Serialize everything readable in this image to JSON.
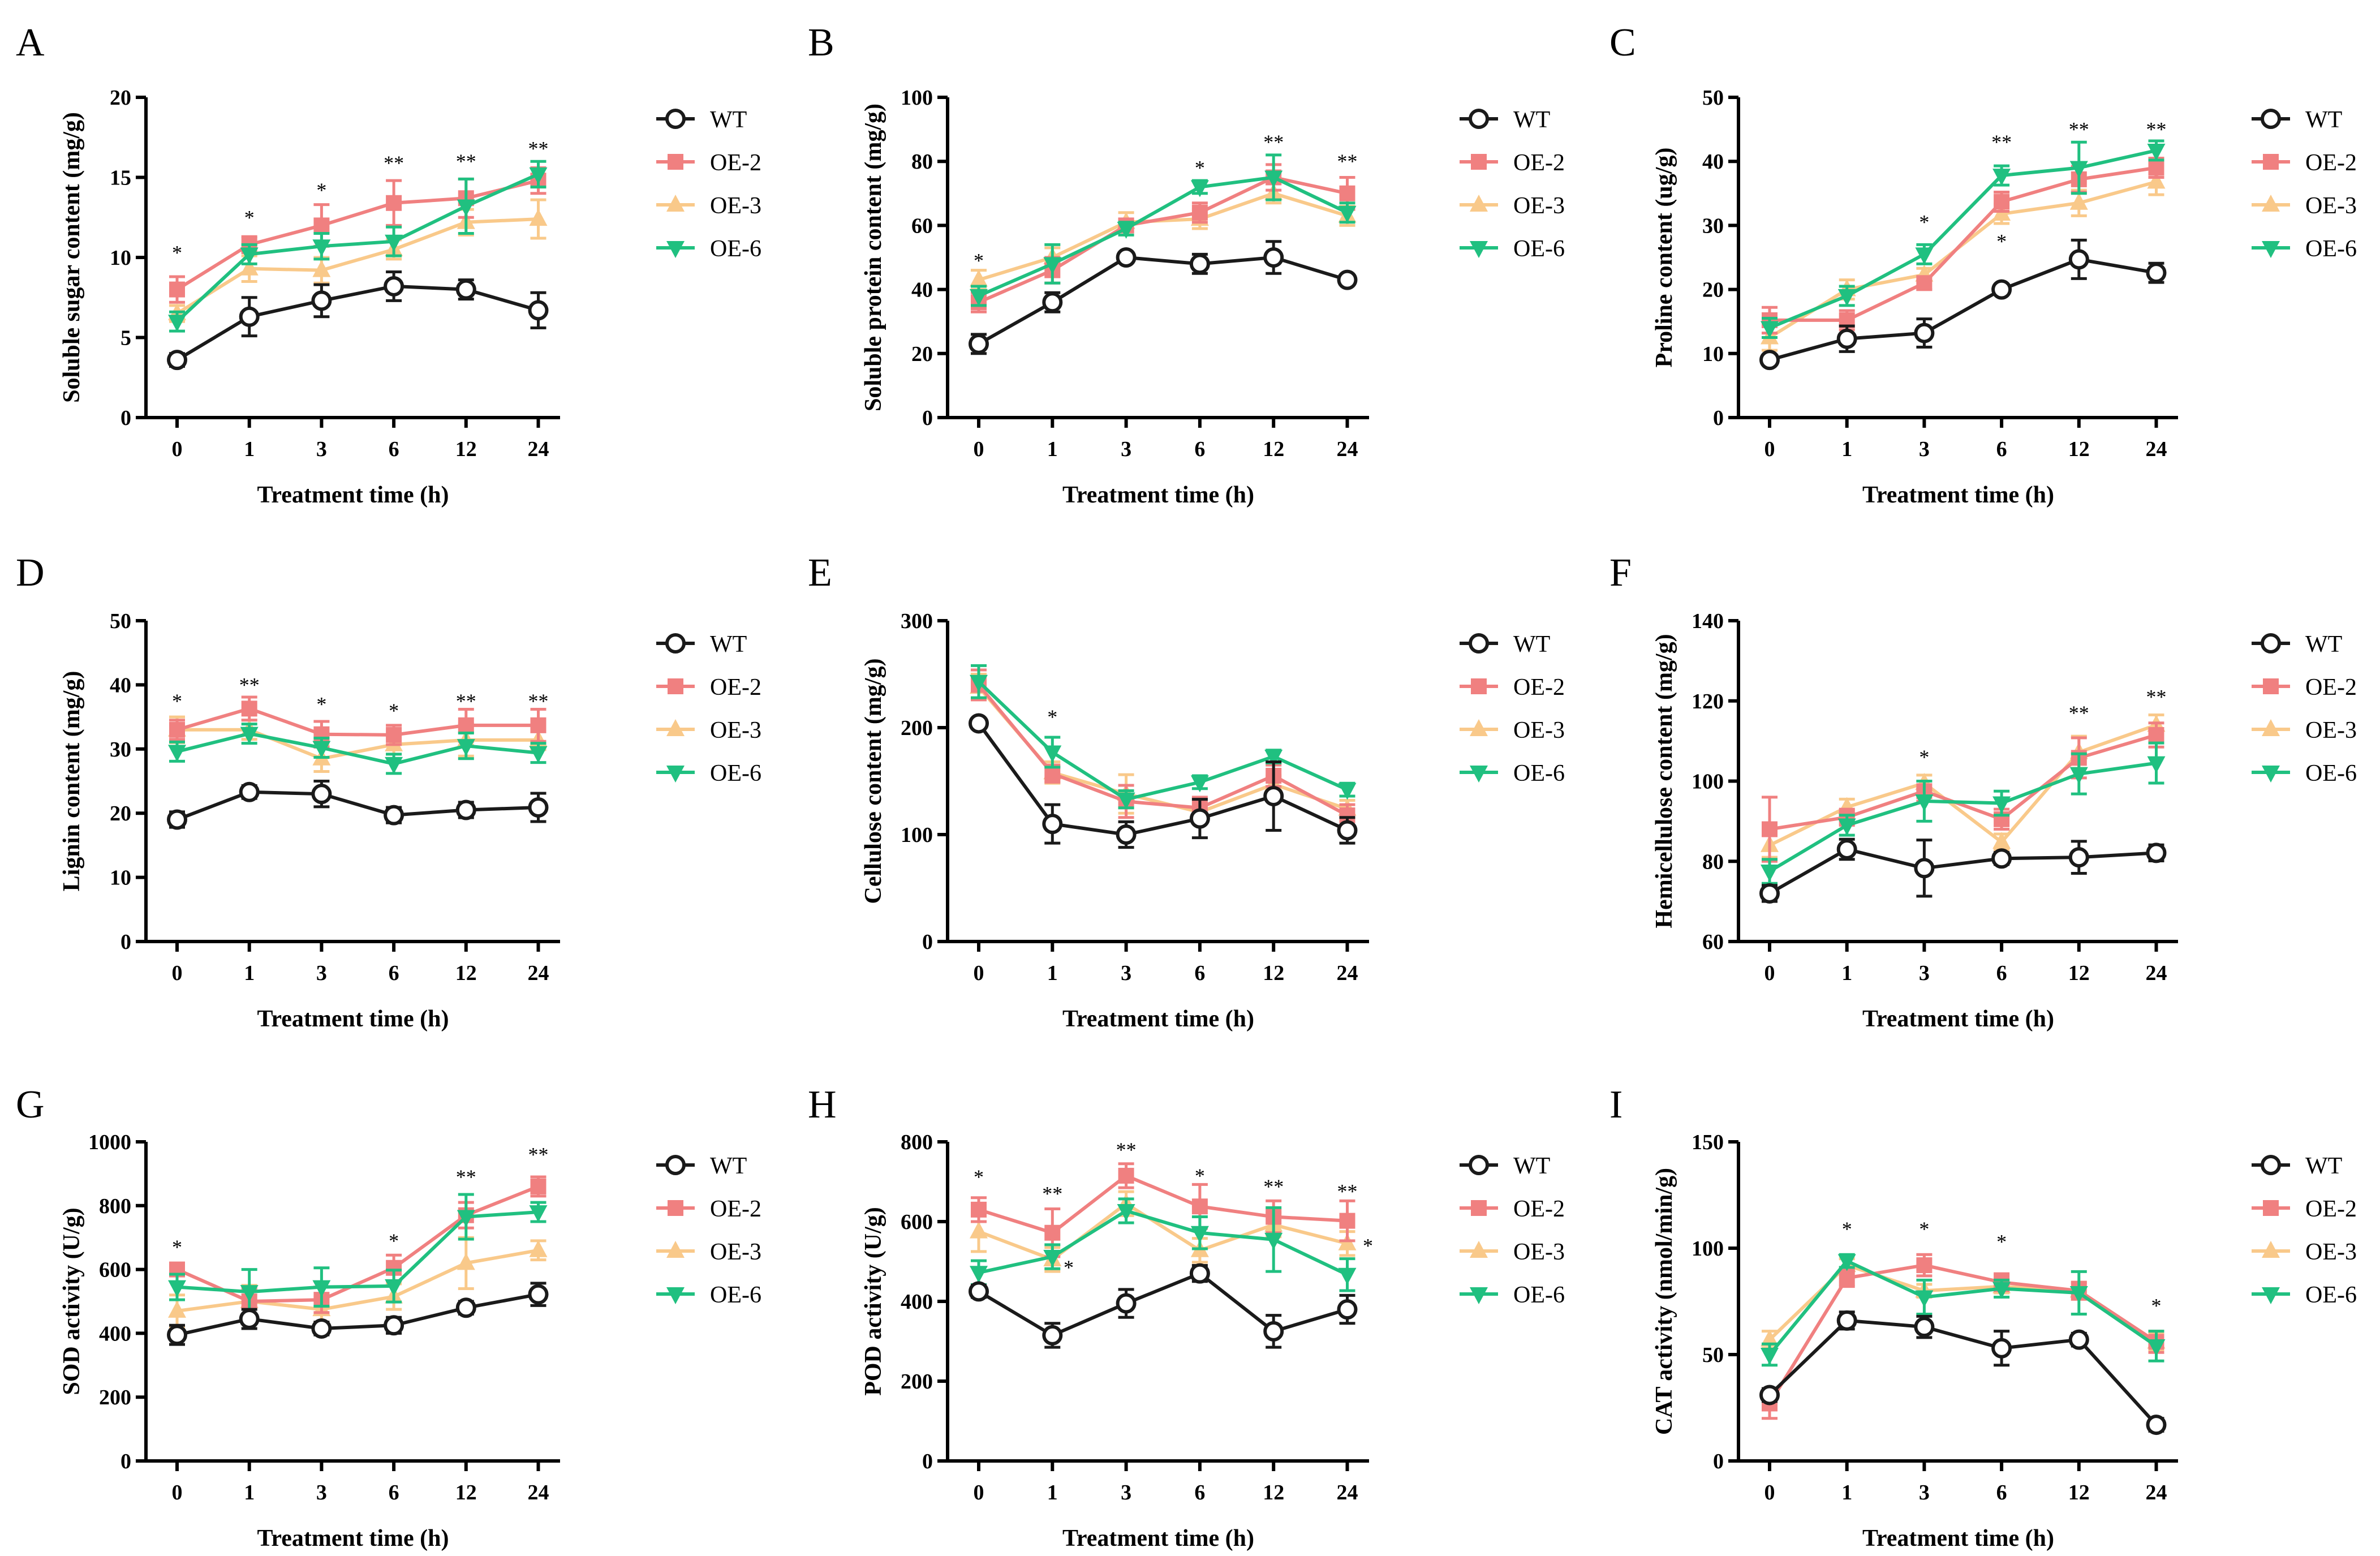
{
  "figure": {
    "panel_count": 9
  },
  "colors": {
    "WT": "#1a1a1a",
    "OE-2": "#f08080",
    "OE-3": "#f9c98a",
    "OE-6": "#20c080"
  },
  "chart_data": [
    {
      "panel": "A",
      "type": "line",
      "ylabel": "Soluble sugar content (mg/g)",
      "xlabel": "Treatment time (h)",
      "categories": [
        "0",
        "1",
        "3",
        "6",
        "12",
        "24"
      ],
      "ylim": [
        0,
        20
      ],
      "yticks": [
        0,
        5,
        10,
        15,
        20
      ],
      "series": [
        {
          "name": "WT",
          "values": [
            3.6,
            6.3,
            7.3,
            8.2,
            8.0,
            6.7
          ],
          "errors": [
            0.4,
            1.2,
            1.0,
            0.9,
            0.6,
            1.1
          ]
        },
        {
          "name": "OE-2",
          "values": [
            8.0,
            10.8,
            12.0,
            13.4,
            13.7,
            14.8
          ],
          "errors": [
            0.8,
            0.5,
            1.3,
            1.4,
            1.2,
            0.8
          ]
        },
        {
          "name": "OE-3",
          "values": [
            6.5,
            9.3,
            9.2,
            10.5,
            12.2,
            12.4
          ],
          "errors": [
            0.5,
            0.8,
            0.8,
            0.6,
            0.8,
            1.2
          ]
        },
        {
          "name": "OE-6",
          "values": [
            6.0,
            10.2,
            10.7,
            11.0,
            13.2,
            15.2
          ],
          "errors": [
            0.6,
            0.6,
            0.8,
            0.9,
            1.7,
            0.8
          ]
        }
      ],
      "annotations": [
        {
          "x": "0",
          "text": "*",
          "y": 10.3
        },
        {
          "x": "1",
          "text": "*",
          "y": 12.5
        },
        {
          "x": "3",
          "text": "*",
          "y": 14.2
        },
        {
          "x": "6",
          "text": "**",
          "y": 15.9
        },
        {
          "x": "12",
          "text": "**",
          "y": 16.0
        },
        {
          "x": "24",
          "text": "**",
          "y": 16.8
        }
      ]
    },
    {
      "panel": "B",
      "type": "line",
      "ylabel": "Soluble protein content (mg/g)",
      "xlabel": "Treatment time (h)",
      "categories": [
        "0",
        "1",
        "3",
        "6",
        "12",
        "24"
      ],
      "ylim": [
        0,
        100
      ],
      "yticks": [
        0,
        20,
        40,
        60,
        80,
        100
      ],
      "series": [
        {
          "name": "WT",
          "values": [
            23,
            36,
            50,
            48,
            50,
            43
          ],
          "errors": [
            3,
            3,
            1,
            3,
            5,
            1
          ]
        },
        {
          "name": "OE-2",
          "values": [
            36,
            46,
            60,
            64,
            75,
            70
          ],
          "errors": [
            3,
            4,
            2,
            3,
            4,
            5
          ]
        },
        {
          "name": "OE-3",
          "values": [
            43,
            50,
            61,
            62,
            70,
            63
          ],
          "errors": [
            3,
            3,
            3,
            3,
            3,
            3
          ]
        },
        {
          "name": "OE-6",
          "values": [
            38,
            48,
            59,
            72,
            75,
            64
          ],
          "errors": [
            3,
            6,
            2,
            2,
            7,
            3
          ]
        }
      ],
      "annotations": [
        {
          "x": "0",
          "text": "*",
          "y": 49
        },
        {
          "x": "6",
          "text": "*",
          "y": 78
        },
        {
          "x": "12",
          "text": "**",
          "y": 86
        },
        {
          "x": "24",
          "text": "**",
          "y": 80
        }
      ]
    },
    {
      "panel": "C",
      "type": "line",
      "ylabel": "Proline content (ug/g)",
      "xlabel": "Treatment time (h)",
      "categories": [
        "0",
        "1",
        "3",
        "6",
        "12",
        "24"
      ],
      "ylim": [
        0,
        50
      ],
      "yticks": [
        0,
        10,
        20,
        30,
        40,
        50
      ],
      "series": [
        {
          "name": "WT",
          "values": [
            9.0,
            12.3,
            13.2,
            20.0,
            24.7,
            22.6
          ],
          "errors": [
            0.5,
            2.0,
            2.2,
            0.5,
            3.0,
            1.5
          ]
        },
        {
          "name": "OE-2",
          "values": [
            15.2,
            15.2,
            21.0,
            33.7,
            37.2,
            39.0
          ],
          "errors": [
            2.0,
            1.5,
            1.0,
            1.5,
            2.0,
            1.5
          ]
        },
        {
          "name": "OE-3",
          "values": [
            12.5,
            20.0,
            22.3,
            31.8,
            33.5,
            36.8
          ],
          "errors": [
            2.0,
            1.5,
            1.0,
            1.5,
            2.0,
            2.0
          ]
        },
        {
          "name": "OE-6",
          "values": [
            14.0,
            19.0,
            25.5,
            37.8,
            39.0,
            41.7
          ],
          "errors": [
            1.5,
            1.5,
            1.5,
            1.5,
            4.0,
            1.5
          ]
        }
      ],
      "annotations": [
        {
          "x": "3",
          "text": "*",
          "y": 30.5
        },
        {
          "x": "6",
          "text": "*",
          "y": 27.5
        },
        {
          "x": "6",
          "text": "**",
          "y": 43.0
        },
        {
          "x": "12",
          "text": "**",
          "y": 45.0
        },
        {
          "x": "24",
          "text": "**",
          "y": 45.0
        }
      ]
    },
    {
      "panel": "D",
      "type": "line",
      "ylabel": "Lignin content (mg/g)",
      "xlabel": "Treatment time (h)",
      "categories": [
        "0",
        "1",
        "3",
        "6",
        "12",
        "24"
      ],
      "ylim": [
        0,
        50
      ],
      "yticks": [
        0,
        10,
        20,
        30,
        40,
        50
      ],
      "series": [
        {
          "name": "WT",
          "values": [
            19.0,
            23.3,
            23.0,
            19.7,
            20.5,
            20.9
          ],
          "errors": [
            1.2,
            1.0,
            2.0,
            1.2,
            1.2,
            2.2
          ]
        },
        {
          "name": "OE-2",
          "values": [
            33.0,
            36.3,
            32.3,
            32.2,
            33.7,
            33.7
          ],
          "errors": [
            1.5,
            1.8,
            2.0,
            1.5,
            2.5,
            2.5
          ]
        },
        {
          "name": "OE-3",
          "values": [
            33.0,
            33.0,
            28.5,
            30.7,
            31.4,
            31.4
          ],
          "errors": [
            2.0,
            1.5,
            2.0,
            1.5,
            2.5,
            1.5
          ]
        },
        {
          "name": "OE-6",
          "values": [
            29.6,
            32.4,
            30.2,
            27.7,
            30.5,
            29.4
          ],
          "errors": [
            1.5,
            1.5,
            1.5,
            1.5,
            2.0,
            1.5
          ]
        }
      ],
      "annotations": [
        {
          "x": "0",
          "text": "*",
          "y": 37.5
        },
        {
          "x": "1",
          "text": "**",
          "y": 40.0
        },
        {
          "x": "3",
          "text": "*",
          "y": 37.0
        },
        {
          "x": "6",
          "text": "*",
          "y": 36.0
        },
        {
          "x": "12",
          "text": "**",
          "y": 37.5
        },
        {
          "x": "24",
          "text": "**",
          "y": 37.5
        }
      ]
    },
    {
      "panel": "E",
      "type": "line",
      "ylabel": "Cellulose content (mg/g)",
      "xlabel": "Treatment time (h)",
      "categories": [
        "0",
        "1",
        "3",
        "6",
        "12",
        "24"
      ],
      "ylim": [
        0,
        300
      ],
      "yticks": [
        0,
        100,
        200,
        300
      ],
      "series": [
        {
          "name": "WT",
          "values": [
            204,
            110,
            100,
            115,
            136,
            104
          ],
          "errors": [
            4,
            18,
            12,
            18,
            32,
            12
          ]
        },
        {
          "name": "OE-2",
          "values": [
            240,
            157,
            131,
            125,
            155,
            118
          ],
          "errors": [
            14,
            8,
            15,
            10,
            10,
            10
          ]
        },
        {
          "name": "OE-3",
          "values": [
            238,
            158,
            138,
            121,
            147,
            124
          ],
          "errors": [
            12,
            10,
            18,
            8,
            8,
            8
          ]
        },
        {
          "name": "OE-6",
          "values": [
            243,
            177,
            133,
            149,
            173,
            142
          ],
          "errors": [
            15,
            14,
            8,
            6,
            6,
            6
          ]
        }
      ],
      "annotations": [
        {
          "x": "1",
          "text": "*",
          "y": 210
        }
      ]
    },
    {
      "panel": "F",
      "type": "line",
      "ylabel": "Hemicellulose content (mg/g)",
      "xlabel": "Treatment time (h)",
      "categories": [
        "0",
        "1",
        "3",
        "6",
        "12",
        "24"
      ],
      "ylim": [
        60,
        140
      ],
      "yticks": [
        60,
        80,
        100,
        120,
        140
      ],
      "series": [
        {
          "name": "WT",
          "values": [
            72.0,
            83.0,
            78.3,
            80.7,
            81.0,
            82.1
          ],
          "errors": [
            2.0,
            2.5,
            7.0,
            1.5,
            4.0,
            2.0
          ]
        },
        {
          "name": "OE-2",
          "values": [
            88.0,
            91.0,
            97.5,
            90.5,
            105.8,
            111.5
          ],
          "errors": [
            8.0,
            2.0,
            2.5,
            2.5,
            5.0,
            3.0
          ]
        },
        {
          "name": "OE-3",
          "values": [
            84.0,
            93.5,
            99.5,
            84.8,
            107.2,
            114.0
          ],
          "errors": [
            3.0,
            2.0,
            2.0,
            2.0,
            4.0,
            2.5
          ]
        },
        {
          "name": "OE-6",
          "values": [
            77.5,
            89.0,
            95.0,
            94.5,
            101.8,
            104.5
          ],
          "errors": [
            3.0,
            2.5,
            5.0,
            3.0,
            5.0,
            5.0
          ]
        }
      ],
      "annotations": [
        {
          "x": "3",
          "text": "*",
          "y": 106
        },
        {
          "x": "12",
          "text": "**",
          "y": 117
        },
        {
          "x": "24",
          "text": "**",
          "y": 121
        }
      ]
    },
    {
      "panel": "G",
      "type": "line",
      "ylabel": "SOD activity (U/g)",
      "xlabel": "Treatment time (h)",
      "categories": [
        "0",
        "1",
        "3",
        "6",
        "12",
        "24"
      ],
      "ylim": [
        0,
        1000
      ],
      "yticks": [
        0,
        200,
        400,
        600,
        800,
        1000
      ],
      "series": [
        {
          "name": "WT",
          "values": [
            395,
            445,
            415,
            425,
            480,
            522
          ],
          "errors": [
            30,
            30,
            20,
            25,
            20,
            35
          ]
        },
        {
          "name": "OE-2",
          "values": [
            600,
            500,
            505,
            605,
            770,
            860
          ],
          "errors": [
            20,
            40,
            40,
            40,
            40,
            30
          ]
        },
        {
          "name": "OE-3",
          "values": [
            470,
            500,
            475,
            515,
            620,
            660
          ],
          "errors": [
            50,
            50,
            40,
            40,
            80,
            30
          ]
        },
        {
          "name": "OE-6",
          "values": [
            545,
            530,
            545,
            548,
            765,
            780
          ],
          "errors": [
            40,
            70,
            60,
            50,
            70,
            30
          ]
        }
      ],
      "annotations": [
        {
          "x": "0",
          "text": "*",
          "y": 670
        },
        {
          "x": "6",
          "text": "*",
          "y": 690
        },
        {
          "x": "12",
          "text": "**",
          "y": 890
        },
        {
          "x": "24",
          "text": "**",
          "y": 960
        }
      ]
    },
    {
      "panel": "H",
      "type": "line",
      "ylabel": "POD activity (U/g)",
      "xlabel": "Treatment time (h)",
      "categories": [
        "0",
        "1",
        "3",
        "6",
        "12",
        "24"
      ],
      "ylim": [
        0,
        800
      ],
      "yticks": [
        0,
        200,
        400,
        600,
        800
      ],
      "series": [
        {
          "name": "WT",
          "values": [
            425,
            315,
            395,
            470,
            325,
            380
          ],
          "errors": [
            15,
            30,
            35,
            20,
            40,
            35
          ]
        },
        {
          "name": "OE-2",
          "values": [
            630,
            572,
            715,
            638,
            612,
            602
          ],
          "errors": [
            30,
            60,
            30,
            55,
            40,
            50
          ]
        },
        {
          "name": "OE-3",
          "values": [
            575,
            505,
            645,
            528,
            592,
            545
          ],
          "errors": [
            50,
            30,
            30,
            30,
            30,
            30
          ]
        },
        {
          "name": "OE-6",
          "values": [
            472,
            512,
            627,
            572,
            555,
            467
          ],
          "errors": [
            30,
            30,
            30,
            40,
            80,
            40
          ]
        }
      ],
      "annotations": [
        {
          "x": "0",
          "text": "*",
          "y": 712
        },
        {
          "x": "1",
          "text": "**",
          "y": 670
        },
        {
          "x": "1",
          "text": "*",
          "y": 485,
          "dx": 0.22
        },
        {
          "x": "3",
          "text": "**",
          "y": 780
        },
        {
          "x": "6",
          "text": "*",
          "y": 715
        },
        {
          "x": "12",
          "text": "**",
          "y": 688
        },
        {
          "x": "24",
          "text": "**",
          "y": 676
        },
        {
          "x": "24",
          "text": "*",
          "y": 540,
          "dx": 0.28
        }
      ]
    },
    {
      "panel": "I",
      "type": "line",
      "ylabel": "CAT activity (nmol/min/g)",
      "xlabel": "Treatment time (h)",
      "categories": [
        "0",
        "1",
        "3",
        "6",
        "12",
        "24"
      ],
      "ylim": [
        0,
        150
      ],
      "yticks": [
        0,
        50,
        100,
        150
      ],
      "series": [
        {
          "name": "WT",
          "values": [
            31,
            66,
            63,
            53,
            57,
            17
          ],
          "errors": [
            3,
            4,
            5,
            8,
            3,
            3
          ]
        },
        {
          "name": "OE-2",
          "values": [
            27,
            86,
            92,
            84,
            80,
            56
          ],
          "errors": [
            7,
            4,
            5,
            4,
            4,
            5
          ]
        },
        {
          "name": "OE-3",
          "values": [
            57,
            92,
            80,
            82,
            80,
            56
          ],
          "errors": [
            4,
            3,
            3,
            3,
            4,
            4
          ]
        },
        {
          "name": "OE-6",
          "values": [
            50,
            94,
            77,
            81,
            79,
            54
          ],
          "errors": [
            5,
            3,
            8,
            4,
            10,
            7
          ]
        }
      ],
      "annotations": [
        {
          "x": "1",
          "text": "*",
          "y": 109
        },
        {
          "x": "3",
          "text": "*",
          "y": 109
        },
        {
          "x": "6",
          "text": "*",
          "y": 103
        },
        {
          "x": "24",
          "text": "*",
          "y": 73
        }
      ]
    }
  ]
}
